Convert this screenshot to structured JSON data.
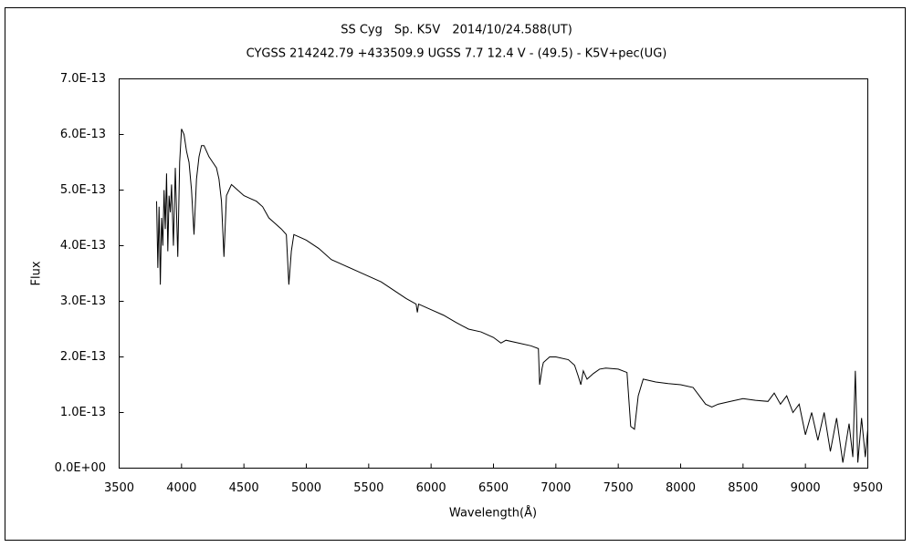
{
  "chart_data": {
    "type": "line",
    "title": "SS Cyg　Sp. K5V　2014/10/24.588(UT)",
    "subtitle": "CYGSS 214242.79 +433509.9 UGSS 7.7 12.4 V - (49.5) - K5V+pec(UG)",
    "xlabel": "Wavelength(Å)",
    "ylabel": "Flux",
    "xlim": [
      3500,
      9500
    ],
    "xticks": [
      3500,
      4000,
      4500,
      5000,
      5500,
      6000,
      6500,
      7000,
      7500,
      8000,
      8500,
      9000,
      9500
    ],
    "ylim": [
      0,
      7e-13
    ],
    "yticks": [
      {
        "value": 0,
        "label": "0.0E+00"
      },
      {
        "value": 1e-13,
        "label": "1.0E-13"
      },
      {
        "value": 2e-13,
        "label": "2.0E-13"
      },
      {
        "value": 3e-13,
        "label": "3.0E-13"
      },
      {
        "value": 4e-13,
        "label": "4.0E-13"
      },
      {
        "value": 5e-13,
        "label": "5.0E-13"
      },
      {
        "value": 6e-13,
        "label": "6.0E-13"
      },
      {
        "value": 7e-13,
        "label": "7.0E-13"
      }
    ],
    "grid": false,
    "series": [
      {
        "color": "#000000",
        "x": [
          3800,
          3810,
          3820,
          3830,
          3840,
          3850,
          3860,
          3870,
          3880,
          3890,
          3900,
          3910,
          3920,
          3935,
          3950,
          3970,
          3985,
          4000,
          4020,
          4040,
          4060,
          4080,
          4100,
          4120,
          4140,
          4160,
          4180,
          4200,
          4220,
          4250,
          4280,
          4300,
          4320,
          4340,
          4360,
          4380,
          4400,
          4450,
          4500,
          4550,
          4600,
          4650,
          4700,
          4750,
          4800,
          4840,
          4860,
          4880,
          4900,
          4950,
          5000,
          5100,
          5200,
          5300,
          5400,
          5500,
          5600,
          5700,
          5800,
          5880,
          5890,
          5900,
          6000,
          6100,
          6200,
          6300,
          6400,
          6500,
          6560,
          6600,
          6700,
          6800,
          6860,
          6870,
          6890,
          6900,
          6950,
          7000,
          7100,
          7150,
          7180,
          7200,
          7220,
          7250,
          7300,
          7350,
          7400,
          7500,
          7570,
          7600,
          7630,
          7660,
          7700,
          7800,
          7900,
          8000,
          8100,
          8150,
          8200,
          8250,
          8300,
          8400,
          8500,
          8600,
          8700,
          8750,
          8800,
          8850,
          8900,
          8950,
          9000,
          9050,
          9100,
          9150,
          9200,
          9250,
          9300,
          9350,
          9380,
          9400,
          9420,
          9450,
          9480,
          9500
        ],
        "values": [
          4.8e-13,
          3.6e-13,
          4.7e-13,
          3.3e-13,
          4.5e-13,
          4e-13,
          5e-13,
          4.3e-13,
          5.3e-13,
          3.9e-13,
          4.9e-13,
          4.6e-13,
          5.1e-13,
          4e-13,
          5.4e-13,
          3.8e-13,
          5.5e-13,
          6.1e-13,
          6e-13,
          5.7e-13,
          5.5e-13,
          5e-13,
          4.2e-13,
          5.2e-13,
          5.6e-13,
          5.8e-13,
          5.8e-13,
          5.7e-13,
          5.6e-13,
          5.5e-13,
          5.4e-13,
          5.2e-13,
          4.8e-13,
          3.8e-13,
          4.9e-13,
          5e-13,
          5.1e-13,
          5e-13,
          4.9e-13,
          4.85e-13,
          4.8e-13,
          4.7e-13,
          4.5e-13,
          4.4e-13,
          4.3e-13,
          4.2e-13,
          3.3e-13,
          3.9e-13,
          4.2e-13,
          4.15e-13,
          4.1e-13,
          3.95e-13,
          3.75e-13,
          3.65e-13,
          3.55e-13,
          3.45e-13,
          3.35e-13,
          3.2e-13,
          3.05e-13,
          2.95e-13,
          2.8e-13,
          2.95e-13,
          2.85e-13,
          2.75e-13,
          2.62e-13,
          2.5e-13,
          2.45e-13,
          2.35e-13,
          2.25e-13,
          2.3e-13,
          2.25e-13,
          2.2e-13,
          2.15e-13,
          1.5e-13,
          1.8e-13,
          1.9e-13,
          2e-13,
          2e-13,
          1.95e-13,
          1.85e-13,
          1.65e-13,
          1.5e-13,
          1.75e-13,
          1.6e-13,
          1.7e-13,
          1.78e-13,
          1.8e-13,
          1.78e-13,
          1.72e-13,
          7.5e-14,
          7e-14,
          1.3e-13,
          1.6e-13,
          1.55e-13,
          1.52e-13,
          1.5e-13,
          1.45e-13,
          1.3e-13,
          1.15e-13,
          1.1e-13,
          1.15e-13,
          1.2e-13,
          1.25e-13,
          1.22e-13,
          1.2e-13,
          1.35e-13,
          1.15e-13,
          1.3e-13,
          1e-13,
          1.15e-13,
          6e-14,
          1e-13,
          5e-14,
          1e-13,
          3e-14,
          9e-14,
          1e-14,
          8e-14,
          2e-14,
          1.75e-13,
          1e-14,
          9e-14,
          2e-14,
          7e-14
        ]
      }
    ]
  }
}
